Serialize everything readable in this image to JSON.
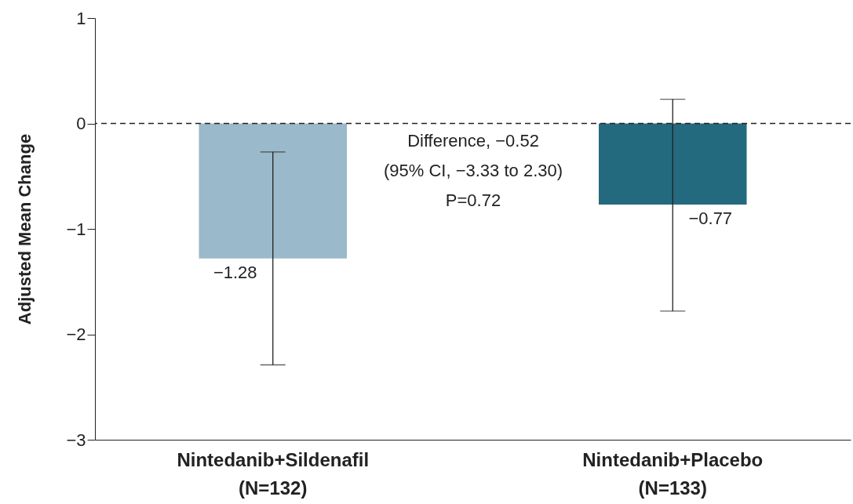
{
  "chart_data": {
    "type": "bar",
    "ylabel": "Adjusted Mean Change",
    "categories": [
      "Nintedanib+Sildenafil\n(N=132)",
      "Nintedanib+Placebo\n(N=133)"
    ],
    "values": [
      -1.28,
      -0.77
    ],
    "colors": [
      "#9ab9ca",
      "#246a7e"
    ],
    "errors": [
      [
        -2.29,
        -0.27
      ],
      [
        -1.78,
        0.23
      ]
    ],
    "data_labels": true,
    "ylim": [
      -3,
      1
    ],
    "yticks": [
      {
        "value": -3,
        "label": "−3"
      },
      {
        "value": -2,
        "label": "−2"
      },
      {
        "value": -1,
        "label": "−1"
      },
      0,
      1
    ],
    "ref_lines": [
      {
        "axis": "y",
        "value": 0,
        "line_style": "dashed",
        "color": "#222222"
      }
    ],
    "annotations": [
      "Difference, −0.52",
      "(95% CI, −3.33 to 2.30)",
      "P=0.72"
    ],
    "grid": false
  }
}
